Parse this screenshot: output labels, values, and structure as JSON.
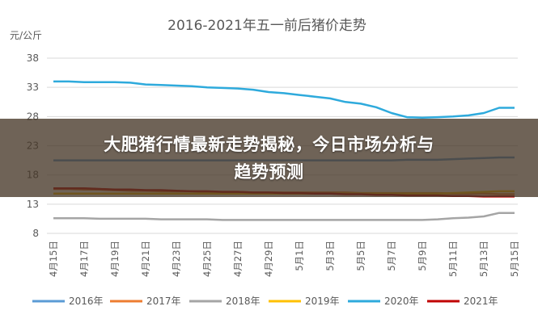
{
  "chart_data": {
    "type": "line",
    "title": "2016-2021年五一前后猪价走势",
    "ylabel": "元/公斤",
    "xlabel": "",
    "ylim": [
      8,
      38
    ],
    "yticks": [
      8,
      13,
      18,
      23,
      28,
      33,
      38
    ],
    "categories": [
      "4月15日",
      "4月16日",
      "4月17日",
      "4月18日",
      "4月19日",
      "4月20日",
      "4月21日",
      "4月22日",
      "4月23日",
      "4月24日",
      "4月25日",
      "4月26日",
      "4月27日",
      "4月28日",
      "4月29日",
      "4月30日",
      "5月1日",
      "5月2日",
      "5月3日",
      "5月4日",
      "5月5日",
      "5月6日",
      "5月7日",
      "5月8日",
      "5月9日",
      "5月10日",
      "5月11日",
      "5月12日",
      "5月13日",
      "5月14日",
      "5月15日"
    ],
    "xtick_labels": [
      "4月15日",
      "4月17日",
      "4月19日",
      "4月21日",
      "4月23日",
      "4月25日",
      "4月27日",
      "4月29日",
      "5月1日",
      "5月3日",
      "5月5日",
      "5月7日",
      "5月9日",
      "5月11日",
      "5月13日",
      "5月15日"
    ],
    "grid": true,
    "legend_position": "bottom",
    "series": [
      {
        "name": "2016年",
        "color": "#5b9bd5",
        "values": [
          20.5,
          20.5,
          20.5,
          20.5,
          20.5,
          20.5,
          20.5,
          20.5,
          20.5,
          20.5,
          20.5,
          20.5,
          20.5,
          20.5,
          20.5,
          20.5,
          20.5,
          20.5,
          20.5,
          20.5,
          20.5,
          20.5,
          20.5,
          20.6,
          20.6,
          20.6,
          20.7,
          20.8,
          20.9,
          21.0,
          21.0
        ]
      },
      {
        "name": "2017年",
        "color": "#ed7d31",
        "values": [
          15.6,
          15.6,
          15.5,
          15.5,
          15.4,
          15.3,
          15.3,
          15.2,
          15.2,
          15.2,
          15.1,
          15.1,
          15.1,
          15.0,
          15.0,
          15.0,
          15.0,
          15.0,
          15.0,
          15.0,
          14.9,
          14.9,
          14.9,
          14.9,
          14.9,
          14.9,
          14.8,
          14.8,
          14.8,
          14.7,
          14.7
        ]
      },
      {
        "name": "2018年",
        "color": "#a5a5a5",
        "values": [
          10.6,
          10.6,
          10.6,
          10.5,
          10.5,
          10.5,
          10.5,
          10.4,
          10.4,
          10.4,
          10.4,
          10.3,
          10.3,
          10.3,
          10.3,
          10.3,
          10.3,
          10.3,
          10.3,
          10.3,
          10.3,
          10.3,
          10.3,
          10.3,
          10.3,
          10.4,
          10.6,
          10.7,
          10.9,
          11.5,
          11.5
        ]
      },
      {
        "name": "2019年",
        "color": "#ffc000",
        "values": [
          14.8,
          14.8,
          14.8,
          14.8,
          14.8,
          14.8,
          14.8,
          14.8,
          14.8,
          14.8,
          14.8,
          14.8,
          14.8,
          14.8,
          14.8,
          14.8,
          14.8,
          14.8,
          14.8,
          14.8,
          14.8,
          14.8,
          14.8,
          14.8,
          14.8,
          14.8,
          14.9,
          15.0,
          15.1,
          15.2,
          15.2
        ]
      },
      {
        "name": "2020年",
        "color": "#2eaadc",
        "values": [
          34.0,
          34.0,
          33.9,
          33.9,
          33.9,
          33.8,
          33.5,
          33.4,
          33.3,
          33.2,
          33.0,
          32.9,
          32.8,
          32.6,
          32.2,
          32.0,
          31.7,
          31.4,
          31.1,
          30.5,
          30.2,
          29.6,
          28.6,
          27.9,
          27.8,
          27.9,
          28.0,
          28.2,
          28.6,
          29.5,
          29.5
        ]
      },
      {
        "name": "2021年",
        "color": "#c00000",
        "values": [
          15.7,
          15.7,
          15.7,
          15.6,
          15.5,
          15.5,
          15.4,
          15.4,
          15.3,
          15.2,
          15.2,
          15.1,
          15.1,
          15.0,
          15.0,
          14.9,
          14.9,
          14.8,
          14.8,
          14.7,
          14.7,
          14.6,
          14.6,
          14.5,
          14.5,
          14.5,
          14.4,
          14.4,
          14.3,
          14.3,
          14.3
        ]
      }
    ]
  },
  "banner": {
    "line1": "大肥猪行情最新走势揭秘，今日市场分析与",
    "line2": "趋势预测"
  }
}
